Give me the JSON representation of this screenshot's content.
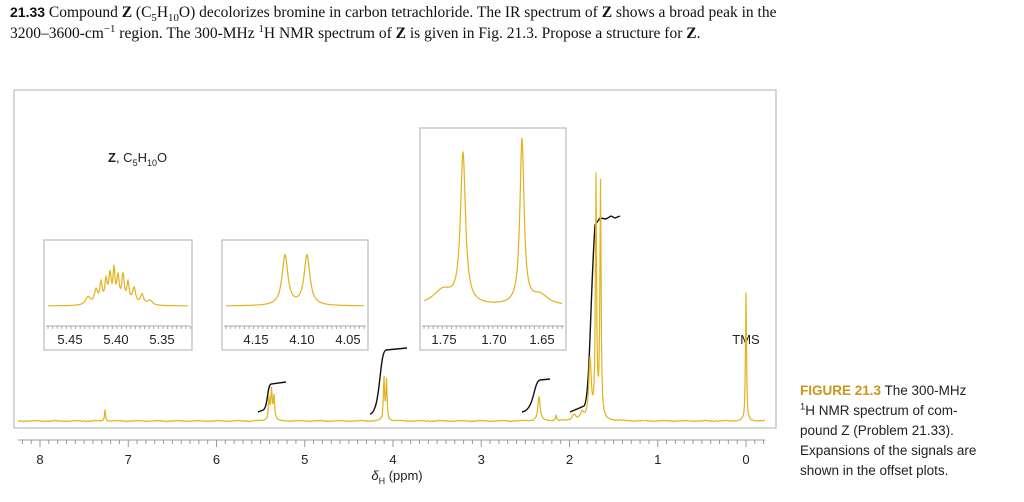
{
  "problem": {
    "number": "21.33",
    "line1": [
      "Compound ",
      "Z",
      " (C",
      "5",
      "H",
      "10",
      "O) decolorizes bromine in carbon tetrachloride. The IR spectrum of ",
      "Z",
      " shows a broad peak in the"
    ],
    "line2": [
      "3200–3600-cm",
      "−1",
      " region. The 300-MHz ",
      "1",
      "H NMR spectrum of ",
      "Z",
      " is given in Fig. 21.3. Propose a structure for ",
      "Z",
      "."
    ]
  },
  "figure": {
    "compound_label": [
      "Z",
      ", C",
      "5",
      "H",
      "10",
      "O"
    ],
    "x_ticks": [
      "8",
      "7",
      "6",
      "5",
      "4",
      "3",
      "2",
      "1",
      "0"
    ],
    "x_axis_label": [
      "δ",
      "H",
      " (ppm)"
    ],
    "tms_label": "TMS",
    "insets": [
      {
        "ticks": [
          "5.45",
          "5.40",
          "5.35"
        ]
      },
      {
        "ticks": [
          "4.15",
          "4.10",
          "4.05"
        ]
      },
      {
        "ticks": [
          "1.75",
          "1.70",
          "1.65"
        ]
      }
    ]
  },
  "caption": {
    "label": "FIGURE 21.3",
    "line1": " The 300-MHz",
    "line2": [
      "1",
      "H NMR spectrum of com-"
    ],
    "line3": "pound Z (Problem 21.33).",
    "line4": "Expansions of the signals are",
    "line5": "shown in the offset plots."
  }
}
